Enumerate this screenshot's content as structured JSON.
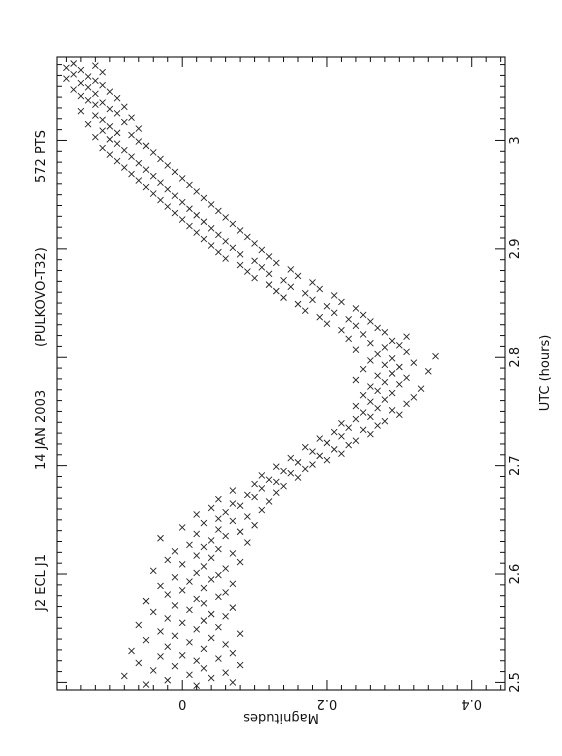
{
  "chart_data": {
    "type": "scatter",
    "orientation": "rotated-90-clockwise",
    "header": {
      "object": "J2 ECL J1",
      "date": "14 JAN 2003",
      "observatory": "(PULKOVO-T32)",
      "points": "572 PTS"
    },
    "xlabel": "UTC (hours)",
    "ylabel": "Magnitudes",
    "xlim": [
      2.493,
      3.077
    ],
    "ylim": [
      0.446,
      -0.173
    ],
    "x_ticks": [
      "2.5",
      "2.6",
      "2.7",
      "2.8",
      "2.9",
      "3"
    ],
    "y_ticks": [
      "0",
      "0.2",
      "0.4"
    ],
    "marker": "x",
    "grid": false,
    "series": [
      {
        "x": [
          2.497,
          2.498,
          2.5,
          2.502,
          2.504,
          2.506,
          2.507,
          2.509,
          2.511,
          2.513,
          2.515,
          2.516,
          2.518,
          2.52,
          2.522,
          2.524,
          2.525,
          2.527,
          2.529,
          2.531,
          2.533,
          2.535,
          2.537,
          2.539,
          2.541,
          2.543,
          2.545,
          2.547,
          2.549,
          2.551,
          2.553,
          2.555,
          2.557,
          2.559,
          2.561,
          2.563,
          2.565,
          2.567,
          2.569,
          2.571,
          2.573,
          2.575,
          2.577,
          2.579,
          2.581,
          2.583,
          2.585,
          2.587,
          2.589,
          2.591,
          2.593,
          2.595,
          2.597,
          2.599,
          2.601,
          2.603,
          2.605,
          2.607,
          2.609,
          2.611,
          2.613,
          2.615,
          2.617,
          2.619,
          2.621,
          2.623,
          2.625,
          2.627,
          2.629,
          2.631,
          2.633,
          2.635,
          2.637,
          2.639,
          2.641,
          2.643,
          2.645,
          2.647,
          2.649,
          2.651,
          2.653,
          2.655,
          2.657,
          2.659,
          2.661,
          2.663,
          2.665,
          2.667,
          2.669,
          2.671,
          2.673,
          2.675,
          2.677,
          2.679,
          2.681,
          2.683,
          2.685,
          2.687,
          2.689,
          2.691,
          2.693,
          2.695,
          2.697,
          2.699,
          2.701,
          2.703,
          2.705,
          2.707,
          2.709,
          2.711,
          2.713,
          2.715,
          2.717,
          2.719,
          2.721,
          2.723,
          2.725,
          2.727,
          2.729,
          2.731,
          2.733,
          2.735,
          2.737,
          2.739,
          2.741,
          2.743,
          2.745,
          2.747,
          2.749,
          2.751,
          2.753,
          2.755,
          2.757,
          2.759,
          2.761,
          2.763,
          2.765,
          2.767,
          2.769,
          2.771,
          2.773,
          2.775,
          2.777,
          2.779,
          2.781,
          2.783,
          2.785,
          2.787,
          2.789,
          2.791,
          2.793,
          2.795,
          2.797,
          2.799,
          2.801,
          2.803,
          2.805,
          2.807,
          2.809,
          2.811,
          2.813,
          2.815,
          2.817,
          2.819,
          2.821,
          2.823,
          2.825,
          2.827,
          2.829,
          2.831,
          2.833,
          2.835,
          2.837,
          2.839,
          2.841,
          2.843,
          2.845,
          2.847,
          2.849,
          2.851,
          2.853,
          2.855,
          2.857,
          2.859,
          2.861,
          2.863,
          2.865,
          2.867,
          2.869,
          2.871,
          2.873,
          2.875,
          2.877,
          2.879,
          2.881,
          2.883,
          2.885,
          2.887,
          2.889,
          2.891,
          2.893,
          2.895,
          2.897,
          2.899,
          2.901,
          2.903,
          2.905,
          2.907,
          2.909,
          2.911,
          2.913,
          2.915,
          2.917,
          2.919,
          2.921,
          2.923,
          2.925,
          2.927,
          2.929,
          2.931,
          2.933,
          2.935,
          2.937,
          2.939,
          2.941,
          2.943,
          2.945,
          2.947,
          2.949,
          2.951,
          2.953,
          2.955,
          2.957,
          2.959,
          2.961,
          2.963,
          2.965,
          2.967,
          2.969,
          2.971,
          2.973,
          2.975,
          2.977,
          2.979,
          2.981,
          2.983,
          2.985,
          2.987,
          2.989,
          2.991,
          2.993,
          2.995,
          2.997,
          2.999,
          3.001,
          3.003,
          3.005,
          3.007,
          3.009,
          3.011,
          3.013,
          3.015,
          3.017,
          3.019,
          3.021,
          3.023,
          3.025,
          3.027,
          3.029,
          3.031,
          3.033,
          3.035,
          3.037,
          3.039,
          3.041,
          3.043,
          3.045,
          3.047,
          3.049,
          3.051,
          3.053,
          3.055,
          3.057,
          3.059,
          3.061,
          3.063,
          3.065,
          3.067,
          3.069,
          3.071
        ],
        "y": [
          0.02,
          -0.05,
          0.07,
          -0.02,
          0.04,
          -0.08,
          0.01,
          0.06,
          -0.04,
          0.03,
          -0.01,
          0.08,
          -0.06,
          0.02,
          0.05,
          -0.03,
          0.0,
          0.07,
          -0.07,
          0.03,
          -0.02,
          0.06,
          0.01,
          -0.05,
          0.04,
          -0.01,
          0.08,
          -0.03,
          0.02,
          0.05,
          -0.06,
          0.0,
          0.03,
          -0.02,
          0.06,
          0.04,
          -0.04,
          0.01,
          0.07,
          -0.01,
          0.03,
          -0.05,
          0.02,
          0.05,
          -0.02,
          0.06,
          0.0,
          0.03,
          -0.03,
          0.07,
          0.01,
          0.04,
          -0.01,
          0.05,
          0.02,
          -0.04,
          0.06,
          0.03,
          0.0,
          0.08,
          -0.02,
          0.04,
          0.02,
          0.07,
          -0.01,
          0.05,
          0.03,
          0.01,
          0.09,
          0.04,
          -0.03,
          0.06,
          0.02,
          0.08,
          0.05,
          0.0,
          0.1,
          0.03,
          0.07,
          0.05,
          0.09,
          0.02,
          0.06,
          0.11,
          0.04,
          0.08,
          0.07,
          0.12,
          0.05,
          0.1,
          0.09,
          0.13,
          0.07,
          0.11,
          0.14,
          0.1,
          0.13,
          0.12,
          0.16,
          0.11,
          0.15,
          0.14,
          0.17,
          0.13,
          0.18,
          0.16,
          0.2,
          0.15,
          0.19,
          0.22,
          0.18,
          0.21,
          0.17,
          0.23,
          0.2,
          0.24,
          0.19,
          0.22,
          0.26,
          0.21,
          0.25,
          0.23,
          0.27,
          0.22,
          0.28,
          0.24,
          0.26,
          0.3,
          0.25,
          0.29,
          0.27,
          0.24,
          0.31,
          0.26,
          0.28,
          0.32,
          0.25,
          0.29,
          0.27,
          0.33,
          0.26,
          0.3,
          0.28,
          0.24,
          0.31,
          0.27,
          0.29,
          0.34,
          0.25,
          0.3,
          0.28,
          0.32,
          0.26,
          0.29,
          0.35,
          0.27,
          0.31,
          0.24,
          0.28,
          0.3,
          0.26,
          0.29,
          0.23,
          0.31,
          0.25,
          0.28,
          0.22,
          0.27,
          0.24,
          0.2,
          0.26,
          0.23,
          0.19,
          0.25,
          0.21,
          0.17,
          0.24,
          0.2,
          0.16,
          0.22,
          0.18,
          0.14,
          0.21,
          0.17,
          0.13,
          0.19,
          0.15,
          0.12,
          0.18,
          0.14,
          0.1,
          0.16,
          0.12,
          0.09,
          0.15,
          0.11,
          0.08,
          0.13,
          0.1,
          0.06,
          0.12,
          0.08,
          0.05,
          0.11,
          0.07,
          0.04,
          0.1,
          0.06,
          0.03,
          0.09,
          0.05,
          0.02,
          0.08,
          0.04,
          0.01,
          0.07,
          0.03,
          0.0,
          0.06,
          0.02,
          -0.01,
          0.05,
          0.01,
          -0.02,
          0.04,
          0.0,
          -0.03,
          0.03,
          -0.01,
          -0.04,
          0.02,
          -0.02,
          -0.05,
          0.01,
          -0.03,
          -0.06,
          0.0,
          -0.04,
          -0.07,
          -0.01,
          -0.05,
          -0.08,
          -0.02,
          -0.06,
          -0.09,
          -0.03,
          -0.07,
          -0.1,
          -0.04,
          -0.08,
          -0.11,
          -0.05,
          -0.09,
          -0.06,
          -0.1,
          -0.12,
          -0.07,
          -0.09,
          -0.11,
          -0.06,
          -0.1,
          -0.13,
          -0.08,
          -0.11,
          -0.07,
          -0.12,
          -0.09,
          -0.14,
          -0.1,
          -0.08,
          -0.12,
          -0.11,
          -0.13,
          -0.09,
          -0.14,
          -0.12,
          -0.1,
          -0.15,
          -0.13,
          -0.11,
          -0.14,
          -0.12,
          -0.16,
          -0.13,
          -0.15,
          -0.11,
          -0.14,
          -0.16,
          -0.12,
          -0.15
        ]
      }
    ]
  }
}
